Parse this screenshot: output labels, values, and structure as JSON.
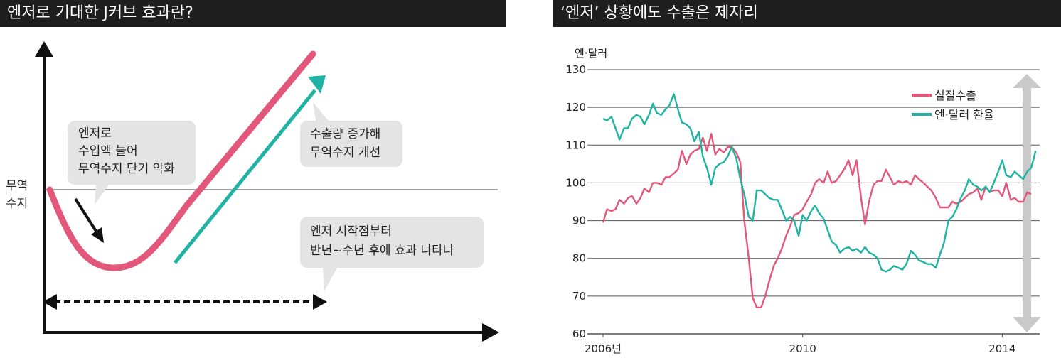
{
  "left_panel": {
    "title": "엔저로 기대한 J커브 효과란?",
    "y_axis_label": [
      "무역",
      "수지"
    ],
    "bubbles": [
      {
        "lines": [
          "엔저로",
          "수입액 늘어",
          "무역수지 단기 악화"
        ]
      },
      {
        "lines": [
          "수출량 증가해",
          "무역수지 개선"
        ]
      },
      {
        "lines": [
          "엔저 시작점부터",
          "반년~수년 후에 효과 나타나"
        ]
      }
    ],
    "colors": {
      "curve": "#e2577a",
      "arrow": "#1fb3a3",
      "bubble": "#e4e4e4"
    }
  },
  "right_panel": {
    "title": "‘엔저’ 상황에도 수출은 제자리",
    "unit_label": "엔·달러"
  },
  "chart_data": {
    "type": "line",
    "ylim": [
      60,
      130
    ],
    "yticks": [
      "130",
      "120",
      "110",
      "100",
      "90",
      "80",
      "70",
      "60"
    ],
    "xlim": [
      2006,
      2014.75
    ],
    "xticks": [
      {
        "value": 2006,
        "label": "2006년"
      },
      {
        "value": 2010,
        "label": "2010"
      },
      {
        "value": 2014,
        "label": "2014"
      }
    ],
    "series": [
      {
        "name": "실질수출",
        "color": "#e2577a",
        "points": [
          [
            2006.0,
            89.5
          ],
          [
            2006.08,
            93
          ],
          [
            2006.17,
            92.5
          ],
          [
            2006.25,
            93
          ],
          [
            2006.33,
            95.5
          ],
          [
            2006.42,
            94.5
          ],
          [
            2006.5,
            96
          ],
          [
            2006.58,
            96.5
          ],
          [
            2006.67,
            94.5
          ],
          [
            2006.75,
            96
          ],
          [
            2006.83,
            98.5
          ],
          [
            2006.92,
            97.5
          ],
          [
            2007.0,
            100
          ],
          [
            2007.08,
            100
          ],
          [
            2007.17,
            99.5
          ],
          [
            2007.25,
            101.5
          ],
          [
            2007.33,
            101.5
          ],
          [
            2007.42,
            102.5
          ],
          [
            2007.5,
            103.5
          ],
          [
            2007.58,
            108.5
          ],
          [
            2007.67,
            105
          ],
          [
            2007.75,
            107.5
          ],
          [
            2007.83,
            108.5
          ],
          [
            2007.92,
            109
          ],
          [
            2008.0,
            112
          ],
          [
            2008.08,
            108.5
          ],
          [
            2008.17,
            113
          ],
          [
            2008.25,
            107.5
          ],
          [
            2008.33,
            109
          ],
          [
            2008.42,
            108
          ],
          [
            2008.5,
            109.5
          ],
          [
            2008.58,
            109.5
          ],
          [
            2008.67,
            108
          ],
          [
            2008.75,
            105.5
          ],
          [
            2008.83,
            90
          ],
          [
            2008.92,
            80
          ],
          [
            2009.0,
            69.5
          ],
          [
            2009.08,
            67
          ],
          [
            2009.17,
            67
          ],
          [
            2009.25,
            70
          ],
          [
            2009.33,
            74
          ],
          [
            2009.42,
            78
          ],
          [
            2009.5,
            80
          ],
          [
            2009.58,
            82.5
          ],
          [
            2009.67,
            86
          ],
          [
            2009.75,
            88.5
          ],
          [
            2009.83,
            91.5
          ],
          [
            2009.92,
            92
          ],
          [
            2010.0,
            93
          ],
          [
            2010.08,
            95
          ],
          [
            2010.17,
            97
          ],
          [
            2010.25,
            100
          ],
          [
            2010.33,
            101
          ],
          [
            2010.42,
            100
          ],
          [
            2010.5,
            103
          ],
          [
            2010.58,
            100
          ],
          [
            2010.67,
            100.5
          ],
          [
            2010.75,
            102
          ],
          [
            2010.83,
            103.5
          ],
          [
            2010.92,
            106
          ],
          [
            2011.0,
            102
          ],
          [
            2011.08,
            106
          ],
          [
            2011.17,
            96
          ],
          [
            2011.25,
            89
          ],
          [
            2011.33,
            95
          ],
          [
            2011.42,
            99.5
          ],
          [
            2011.5,
            100.5
          ],
          [
            2011.58,
            100.5
          ],
          [
            2011.67,
            103.5
          ],
          [
            2011.75,
            101.5
          ],
          [
            2011.83,
            99.5
          ],
          [
            2011.92,
            100.5
          ],
          [
            2012.0,
            100
          ],
          [
            2012.08,
            100.5
          ],
          [
            2012.17,
            99.5
          ],
          [
            2012.25,
            102
          ],
          [
            2012.33,
            101
          ],
          [
            2012.42,
            100
          ],
          [
            2012.5,
            99
          ],
          [
            2012.58,
            98
          ],
          [
            2012.67,
            96
          ],
          [
            2012.75,
            93.5
          ],
          [
            2012.83,
            93.5
          ],
          [
            2012.92,
            93.5
          ],
          [
            2013.0,
            95
          ],
          [
            2013.08,
            94.5
          ],
          [
            2013.17,
            95
          ],
          [
            2013.25,
            96
          ],
          [
            2013.33,
            97
          ],
          [
            2013.42,
            97.5
          ],
          [
            2013.5,
            98.5
          ],
          [
            2013.58,
            95.5
          ],
          [
            2013.67,
            99
          ],
          [
            2013.75,
            97.5
          ],
          [
            2013.83,
            98
          ],
          [
            2013.92,
            98
          ],
          [
            2014.0,
            96.5
          ],
          [
            2014.08,
            100
          ],
          [
            2014.17,
            95.5
          ],
          [
            2014.25,
            96
          ],
          [
            2014.33,
            95
          ],
          [
            2014.42,
            95
          ],
          [
            2014.5,
            97.5
          ],
          [
            2014.58,
            97
          ]
        ]
      },
      {
        "name": "엔·달러 환율",
        "color": "#1fb3a3",
        "points": [
          [
            2006.0,
            117
          ],
          [
            2006.08,
            116.5
          ],
          [
            2006.17,
            117.5
          ],
          [
            2006.25,
            114.5
          ],
          [
            2006.33,
            111.5
          ],
          [
            2006.42,
            114.5
          ],
          [
            2006.5,
            114.5
          ],
          [
            2006.58,
            117
          ],
          [
            2006.67,
            118
          ],
          [
            2006.75,
            117.5
          ],
          [
            2006.83,
            115.5
          ],
          [
            2006.92,
            118
          ],
          [
            2007.0,
            121
          ],
          [
            2007.08,
            118.5
          ],
          [
            2007.17,
            118
          ],
          [
            2007.25,
            119.5
          ],
          [
            2007.33,
            120.5
          ],
          [
            2007.42,
            123.5
          ],
          [
            2007.5,
            119.5
          ],
          [
            2007.58,
            116
          ],
          [
            2007.67,
            115.5
          ],
          [
            2007.75,
            114.5
          ],
          [
            2007.83,
            111
          ],
          [
            2007.92,
            113.5
          ],
          [
            2008.0,
            107
          ],
          [
            2008.08,
            104
          ],
          [
            2008.17,
            99.5
          ],
          [
            2008.25,
            104
          ],
          [
            2008.33,
            105
          ],
          [
            2008.42,
            105.5
          ],
          [
            2008.5,
            107
          ],
          [
            2008.58,
            109.5
          ],
          [
            2008.67,
            106.5
          ],
          [
            2008.75,
            101
          ],
          [
            2008.83,
            97
          ],
          [
            2008.92,
            91
          ],
          [
            2009.0,
            90
          ],
          [
            2009.08,
            98
          ],
          [
            2009.17,
            98
          ],
          [
            2009.25,
            97
          ],
          [
            2009.33,
            96
          ],
          [
            2009.42,
            95.5
          ],
          [
            2009.5,
            95.5
          ],
          [
            2009.58,
            93
          ],
          [
            2009.67,
            90
          ],
          [
            2009.75,
            91
          ],
          [
            2009.83,
            90
          ],
          [
            2009.92,
            86
          ],
          [
            2010.0,
            91.5
          ],
          [
            2010.08,
            90
          ],
          [
            2010.17,
            92.5
          ],
          [
            2010.25,
            94
          ],
          [
            2010.33,
            92
          ],
          [
            2010.42,
            90.5
          ],
          [
            2010.5,
            87.5
          ],
          [
            2010.58,
            84.5
          ],
          [
            2010.67,
            83.5
          ],
          [
            2010.75,
            81.5
          ],
          [
            2010.83,
            82.5
          ],
          [
            2010.92,
            83
          ],
          [
            2011.0,
            82
          ],
          [
            2011.08,
            82.5
          ],
          [
            2011.17,
            81.5
          ],
          [
            2011.25,
            83
          ],
          [
            2011.33,
            81.5
          ],
          [
            2011.42,
            81
          ],
          [
            2011.5,
            80
          ],
          [
            2011.58,
            77
          ],
          [
            2011.67,
            76.5
          ],
          [
            2011.75,
            77
          ],
          [
            2011.83,
            78
          ],
          [
            2011.92,
            77.5
          ],
          [
            2012.0,
            77
          ],
          [
            2012.08,
            78.5
          ],
          [
            2012.17,
            82
          ],
          [
            2012.25,
            81
          ],
          [
            2012.33,
            79.5
          ],
          [
            2012.42,
            79
          ],
          [
            2012.5,
            78.5
          ],
          [
            2012.58,
            78.5
          ],
          [
            2012.67,
            77.5
          ],
          [
            2012.75,
            81
          ],
          [
            2012.83,
            84
          ],
          [
            2012.92,
            90
          ],
          [
            2013.0,
            91
          ],
          [
            2013.08,
            93
          ],
          [
            2013.17,
            96
          ],
          [
            2013.25,
            98
          ],
          [
            2013.33,
            101
          ],
          [
            2013.42,
            99.5
          ],
          [
            2013.5,
            99
          ],
          [
            2013.58,
            98
          ],
          [
            2013.67,
            99
          ],
          [
            2013.75,
            97.5
          ],
          [
            2013.83,
            100
          ],
          [
            2013.92,
            103
          ],
          [
            2014.0,
            106
          ],
          [
            2014.08,
            102
          ],
          [
            2014.17,
            101.5
          ],
          [
            2014.25,
            103
          ],
          [
            2014.33,
            102
          ],
          [
            2014.42,
            101
          ],
          [
            2014.5,
            103
          ],
          [
            2014.58,
            104
          ],
          [
            2014.67,
            108.5
          ]
        ]
      }
    ],
    "range_arrow_color": "#c9c9c9"
  }
}
